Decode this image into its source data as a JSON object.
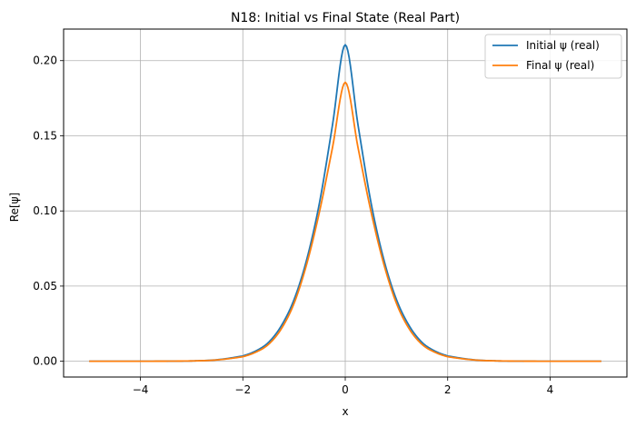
{
  "chart_data": {
    "type": "line",
    "title": "N18: Initial vs Final State (Real Part)",
    "xlabel": "x",
    "ylabel": "Re[ψ]",
    "xlim": [
      -5.5,
      5.5
    ],
    "ylim": [
      -0.0105,
      0.221
    ],
    "x_ticks": [
      -4,
      -2,
      0,
      2,
      4
    ],
    "x_tick_labels": [
      "−4",
      "−2",
      "0",
      "2",
      "4"
    ],
    "y_ticks": [
      0.0,
      0.05,
      0.1,
      0.15,
      0.2
    ],
    "y_tick_labels": [
      "0.00",
      "0.05",
      "0.10",
      "0.15",
      "0.20"
    ],
    "grid": true,
    "legend_position": "top-right",
    "x_range": [
      -5,
      5
    ],
    "series": [
      {
        "name": "Initial ψ (real)",
        "color": "#1f77b4",
        "x": [
          -5.0,
          -4.0,
          -3.0,
          -2.5,
          -2.0,
          -1.75,
          -1.5,
          -1.25,
          -1.0,
          -0.75,
          -0.5,
          -0.25,
          0.0,
          0.25,
          0.5,
          0.75,
          1.0,
          1.25,
          1.5,
          1.75,
          2.0,
          2.5,
          3.0,
          4.0,
          5.0
        ],
        "values": [
          0.0,
          0.0,
          0.0002,
          0.001,
          0.0035,
          0.0068,
          0.0125,
          0.0235,
          0.041,
          0.068,
          0.106,
          0.157,
          0.2105,
          0.157,
          0.106,
          0.068,
          0.041,
          0.0235,
          0.0125,
          0.0068,
          0.0035,
          0.001,
          0.0002,
          0.0,
          0.0
        ]
      },
      {
        "name": "Final ψ (real)",
        "color": "#ff7f0e",
        "x": [
          -5.0,
          -4.0,
          -3.0,
          -2.5,
          -2.0,
          -1.75,
          -1.5,
          -1.25,
          -1.0,
          -0.75,
          -0.5,
          -0.25,
          0.0,
          0.25,
          0.5,
          0.75,
          1.0,
          1.25,
          1.5,
          1.75,
          2.0,
          2.5,
          3.0,
          4.0,
          5.0
        ],
        "values": [
          0.0,
          0.0,
          0.0002,
          0.0009,
          0.003,
          0.006,
          0.0112,
          0.0215,
          0.0385,
          0.065,
          0.1,
          0.142,
          0.1855,
          0.142,
          0.1,
          0.065,
          0.0385,
          0.0215,
          0.0112,
          0.006,
          0.003,
          0.0009,
          0.0002,
          0.0,
          0.0
        ]
      }
    ]
  }
}
